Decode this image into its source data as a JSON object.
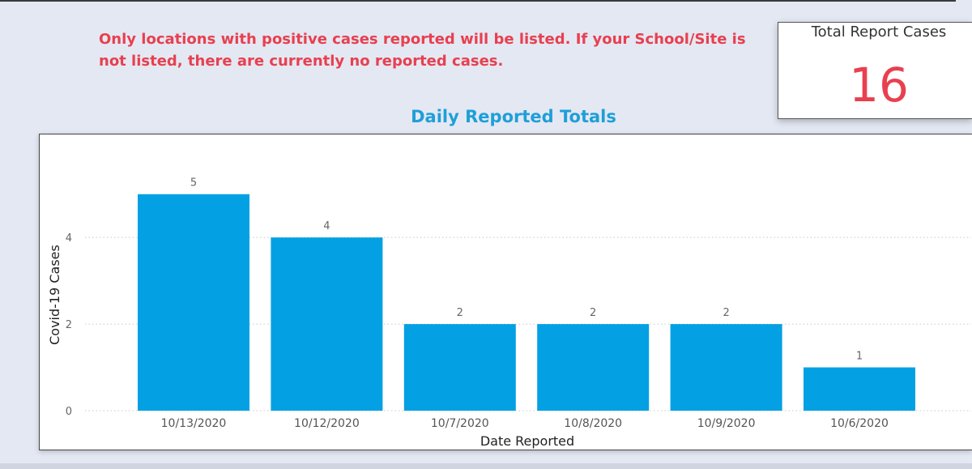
{
  "notice": {
    "text": "Only locations with positive cases reported will be listed. If your School/Site is not listed, there are currently no reported cases."
  },
  "kpi": {
    "label": "Total Report Cases",
    "value": "16"
  },
  "colors": {
    "bar": "#03a1e4",
    "notice": "#e8404f",
    "title": "#1f9fd8"
  },
  "chart_data": {
    "type": "bar",
    "title": "Daily Reported Totals",
    "xlabel": "Date Reported",
    "ylabel": "Covid-19 Cases",
    "categories": [
      "10/13/2020",
      "10/12/2020",
      "10/7/2020",
      "10/8/2020",
      "10/9/2020",
      "10/6/2020"
    ],
    "values": [
      5,
      4,
      2,
      2,
      2,
      1
    ],
    "yticks": [
      0,
      2,
      4
    ],
    "ylim": [
      0,
      5.5
    ],
    "grid": true,
    "data_labels": true
  }
}
